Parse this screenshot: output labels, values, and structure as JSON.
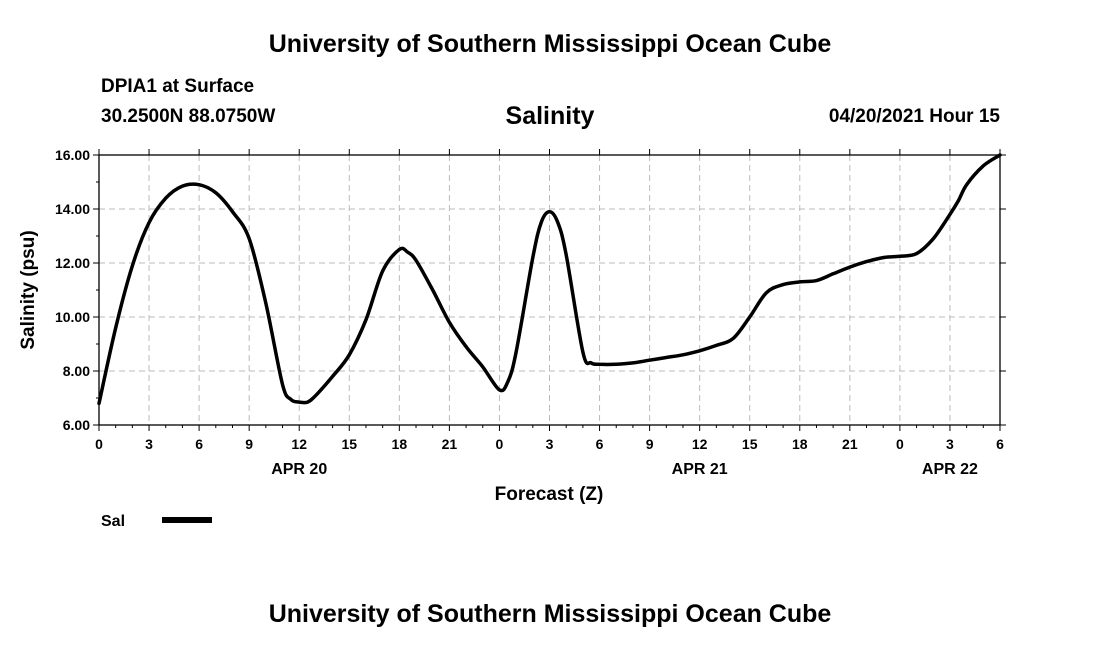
{
  "header": {
    "top_title": "University of Southern Mississippi Ocean Cube",
    "station": "DPIA1 at Surface",
    "coords": "30.2500N  88.0750W",
    "datetime": "04/20/2021 Hour 15",
    "bottom_title": "University of Southern Mississippi Ocean Cube"
  },
  "chart_data": {
    "type": "line",
    "title": "Salinity",
    "xlabel": "Forecast (Z)",
    "ylabel": "Salinity (psu)",
    "ylim": [
      6.0,
      16.0
    ],
    "xlim": [
      0,
      54
    ],
    "y_ticks": [
      "6.00",
      "8.00",
      "10.00",
      "12.00",
      "14.00",
      "16.00"
    ],
    "y_tick_values": [
      6,
      8,
      10,
      12,
      14,
      16
    ],
    "x_tick_labels": [
      "0",
      "3",
      "6",
      "9",
      "12",
      "15",
      "18",
      "21",
      "0",
      "3",
      "6",
      "9",
      "12",
      "15",
      "18",
      "21",
      "0",
      "3",
      "6"
    ],
    "date_labels": [
      {
        "label": "APR 20",
        "x": 12
      },
      {
        "label": "APR 21",
        "x": 36
      },
      {
        "label": "APR 22",
        "x": 51
      }
    ],
    "grid": true,
    "legend_position": "bottom-left",
    "series": [
      {
        "name": "Sal",
        "color": "#000000",
        "x": [
          0,
          1,
          2,
          3,
          4,
          5,
          6,
          7,
          8,
          9,
          10,
          11,
          11.5,
          12,
          12.5,
          13,
          14,
          15,
          16,
          17,
          18,
          18.5,
          19,
          20,
          21,
          22,
          23,
          24,
          24.5,
          25,
          26,
          26.5,
          27,
          27.5,
          28,
          29,
          29.5,
          30,
          31,
          32,
          33,
          34,
          35,
          36,
          37,
          38,
          39,
          40,
          41,
          42,
          43,
          44,
          45,
          46,
          47,
          48,
          49,
          50,
          51,
          51.5,
          52,
          53,
          54
        ],
        "values": [
          6.8,
          9.6,
          11.9,
          13.5,
          14.4,
          14.85,
          14.9,
          14.6,
          13.9,
          12.9,
          10.5,
          7.5,
          6.95,
          6.85,
          6.85,
          7.1,
          7.8,
          8.6,
          9.9,
          11.7,
          12.5,
          12.4,
          12.1,
          11.0,
          9.8,
          8.9,
          8.15,
          7.3,
          7.6,
          8.7,
          12.2,
          13.5,
          13.9,
          13.5,
          12.3,
          8.7,
          8.3,
          8.25,
          8.25,
          8.3,
          8.4,
          8.5,
          8.6,
          8.75,
          8.95,
          9.2,
          10.0,
          10.9,
          11.2,
          11.3,
          11.35,
          11.6,
          11.85,
          12.05,
          12.2,
          12.25,
          12.35,
          12.9,
          13.8,
          14.3,
          14.9,
          15.6,
          16.0
        ]
      }
    ]
  }
}
